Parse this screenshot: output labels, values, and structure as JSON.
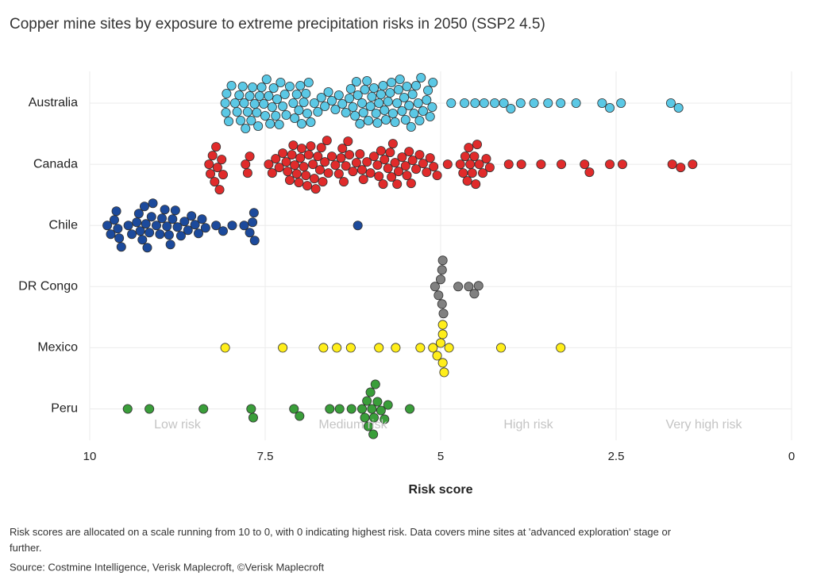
{
  "chart_data": {
    "type": "beeswarm",
    "title": "Copper mine sites by exposure to extreme precipitation risks in 2050 (SSP2 4.5)",
    "x_label": "Risk score",
    "xlim": [
      10,
      0
    ],
    "xticks": [
      10,
      7.5,
      5,
      2.5,
      0
    ],
    "grid": true,
    "zones": [
      "Low risk",
      "Medium risk",
      "High risk",
      "Very high risk"
    ],
    "notes": [
      "Risk scores are allocated on a scale running from 10 to 0, with 0 indicating highest risk. Data covers mine sites at 'advanced exploration' stage or further.",
      "Source: Costmine Intelligence, Verisk Maplecroft, ©Verisk Maplecroft"
    ],
    "series": [
      {
        "name": "Australia",
        "color": "#5bc8e5",
        "values": [
          8.07,
          8.06,
          8.05,
          8.02,
          7.98,
          7.93,
          7.9,
          7.87,
          7.85,
          7.82,
          7.8,
          7.78,
          7.75,
          7.72,
          7.7,
          7.68,
          7.65,
          7.62,
          7.6,
          7.58,
          7.55,
          7.52,
          7.5,
          7.48,
          7.45,
          7.43,
          7.4,
          7.38,
          7.35,
          7.33,
          7.3,
          7.28,
          7.25,
          7.22,
          7.2,
          7.15,
          7.1,
          7.08,
          7.05,
          7.02,
          7.0,
          6.98,
          6.95,
          6.92,
          6.9,
          6.88,
          6.85,
          6.8,
          6.75,
          6.7,
          6.65,
          6.6,
          6.55,
          6.5,
          6.45,
          6.4,
          6.35,
          6.3,
          6.28,
          6.25,
          6.22,
          6.2,
          6.18,
          6.15,
          6.12,
          6.1,
          6.08,
          6.05,
          6.03,
          6.0,
          5.98,
          5.95,
          5.92,
          5.9,
          5.88,
          5.85,
          5.82,
          5.8,
          5.78,
          5.75,
          5.72,
          5.7,
          5.68,
          5.65,
          5.62,
          5.6,
          5.58,
          5.55,
          5.52,
          5.5,
          5.48,
          5.45,
          5.42,
          5.4,
          5.38,
          5.35,
          5.32,
          5.3,
          5.28,
          5.25,
          5.2,
          5.18,
          5.15,
          5.12,
          5.11,
          4.85,
          4.66,
          4.51,
          4.38,
          4.23,
          4.1,
          4.0,
          3.86,
          3.67,
          3.47,
          3.29,
          3.07,
          2.7,
          2.59,
          2.43,
          1.72,
          1.61
        ]
      },
      {
        "name": "Canada",
        "color": "#e02b2b",
        "values": [
          8.3,
          8.28,
          8.25,
          8.22,
          8.2,
          8.18,
          8.15,
          8.12,
          8.1,
          7.78,
          7.75,
          7.72,
          7.45,
          7.4,
          7.35,
          7.3,
          7.25,
          7.2,
          7.18,
          7.15,
          7.12,
          7.1,
          7.08,
          7.05,
          7.02,
          7.0,
          6.98,
          6.95,
          6.92,
          6.9,
          6.88,
          6.85,
          6.82,
          6.8,
          6.78,
          6.75,
          6.72,
          6.7,
          6.68,
          6.65,
          6.62,
          6.6,
          6.55,
          6.5,
          6.45,
          6.42,
          6.4,
          6.38,
          6.35,
          6.32,
          6.3,
          6.25,
          6.2,
          6.15,
          6.12,
          6.1,
          6.05,
          6.0,
          5.95,
          5.9,
          5.88,
          5.85,
          5.82,
          5.8,
          5.75,
          5.72,
          5.7,
          5.68,
          5.65,
          5.62,
          5.6,
          5.55,
          5.5,
          5.48,
          5.45,
          5.42,
          5.4,
          5.35,
          5.3,
          5.25,
          5.2,
          5.15,
          5.1,
          5.05,
          4.9,
          4.72,
          4.68,
          4.65,
          4.62,
          4.6,
          4.58,
          4.55,
          4.52,
          4.5,
          4.48,
          4.45,
          4.4,
          4.35,
          4.3,
          4.03,
          3.85,
          3.57,
          3.28,
          2.95,
          2.88,
          2.59,
          2.41,
          1.7,
          1.58,
          1.41
        ]
      },
      {
        "name": "Chile",
        "color": "#1c4a9c",
        "values": [
          9.75,
          9.7,
          9.65,
          9.62,
          9.6,
          9.58,
          9.55,
          9.45,
          9.4,
          9.33,
          9.3,
          9.28,
          9.25,
          9.22,
          9.2,
          9.18,
          9.15,
          9.12,
          9.1,
          9.05,
          9.0,
          8.97,
          8.93,
          8.9,
          8.87,
          8.85,
          8.82,
          8.78,
          8.75,
          8.7,
          8.65,
          8.6,
          8.55,
          8.5,
          8.45,
          8.4,
          8.35,
          8.2,
          8.1,
          7.97,
          7.8,
          7.72,
          7.68,
          7.66,
          7.65,
          6.18
        ]
      },
      {
        "name": "DR Congo",
        "color": "#808080",
        "values": [
          5.0,
          4.98,
          4.98,
          4.97,
          4.96,
          5.08,
          5.03,
          4.75,
          4.6,
          4.52,
          4.46
        ]
      },
      {
        "name": "Mexico",
        "color": "#ffee1a",
        "values": [
          8.07,
          7.25,
          6.67,
          6.48,
          6.28,
          5.88,
          5.64,
          5.29,
          5.11,
          5.05,
          5.0,
          4.97,
          4.97,
          4.97,
          4.95,
          4.88,
          4.14,
          3.29
        ]
      },
      {
        "name": "Peru",
        "color": "#3a9e3a",
        "values": [
          9.46,
          9.15,
          8.38,
          7.7,
          7.67,
          7.09,
          7.01,
          6.58,
          6.44,
          6.27,
          6.12,
          6.08,
          6.05,
          6.03,
          6.0,
          5.98,
          5.96,
          5.95,
          5.93,
          5.9,
          5.85,
          5.8,
          5.75,
          5.44
        ]
      }
    ]
  }
}
